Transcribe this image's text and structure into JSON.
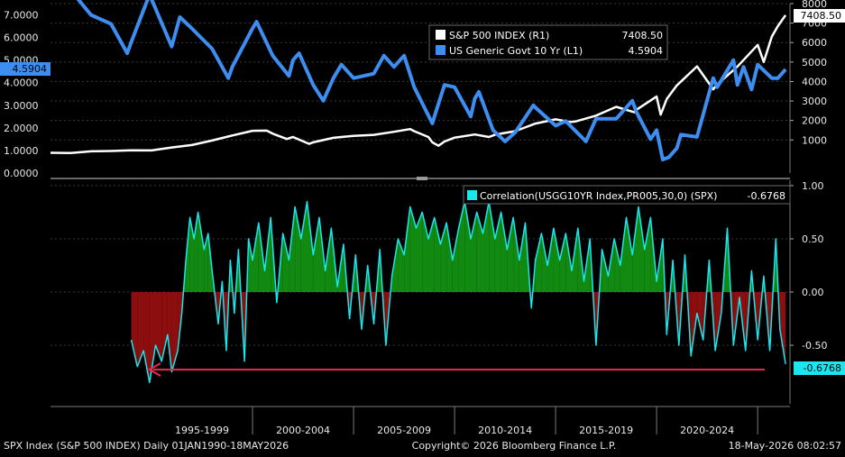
{
  "colors": {
    "background": "#000000",
    "spx_line": "#ffffff",
    "yield_line": "#3d8ef0",
    "corr_line": "#19e6ee",
    "corr_pos_fill": "#128a12",
    "corr_neg_fill": "#8c0e0e",
    "arrow": "#e8284f",
    "grid": "#3a3a3a",
    "axis_text": "#e8e8e8"
  },
  "footer": {
    "left": "SPX Index (S&P 500 INDEX) Daily 01JAN1990-18MAY2026",
    "center": "Copyright© 2026 Bloomberg Finance L.P.",
    "right": "18-May-2026 08:02:57"
  },
  "chart_data": [
    {
      "type": "line",
      "panel": "top",
      "legend": [
        {
          "name": "S&P 500 INDEX  (R1)",
          "last": "7408.50",
          "color": "#ffffff"
        },
        {
          "name": "US Generic Govt 10 Yr  (L1)",
          "last": "4.5904",
          "color": "#3d8ef0"
        }
      ],
      "left_axis": {
        "ticks": [
          "0.0000",
          "1.0000",
          "2.0000",
          "3.0000",
          "4.0000",
          "5.0000",
          "6.0000",
          "7.0000"
        ],
        "ylim": [
          0,
          7.5
        ],
        "last_label": "4.5904"
      },
      "right_axis": {
        "ticks": [
          "1000",
          "2000",
          "3000",
          "4000",
          "5000",
          "6000",
          "7000",
          "8000"
        ],
        "ylim": [
          -700,
          8000
        ],
        "last_label": "7408.50"
      },
      "series": [
        {
          "name": "S&P 500 INDEX",
          "axis": "right",
          "points": [
            [
              1990.0,
              340
            ],
            [
              1991.0,
              330
            ],
            [
              1992.0,
              415
            ],
            [
              1993.0,
              435
            ],
            [
              1994.0,
              465
            ],
            [
              1995.0,
              460
            ],
            [
              1996.0,
              615
            ],
            [
              1997.0,
              740
            ],
            [
              1998.0,
              970
            ],
            [
              1999.0,
              1230
            ],
            [
              2000.0,
              1470
            ],
            [
              2000.7,
              1480
            ],
            [
              2001.0,
              1320
            ],
            [
              2001.7,
              1050
            ],
            [
              2002.0,
              1150
            ],
            [
              2002.8,
              800
            ],
            [
              2003.0,
              880
            ],
            [
              2004.0,
              1110
            ],
            [
              2005.0,
              1210
            ],
            [
              2006.0,
              1260
            ],
            [
              2007.0,
              1420
            ],
            [
              2007.8,
              1560
            ],
            [
              2008.0,
              1450
            ],
            [
              2008.7,
              1150
            ],
            [
              2008.9,
              880
            ],
            [
              2009.2,
              700
            ],
            [
              2009.5,
              920
            ],
            [
              2010.0,
              1120
            ],
            [
              2011.0,
              1280
            ],
            [
              2011.7,
              1150
            ],
            [
              2012.0,
              1270
            ],
            [
              2013.0,
              1450
            ],
            [
              2014.0,
              1840
            ],
            [
              2015.0,
              2060
            ],
            [
              2015.7,
              1920
            ],
            [
              2016.0,
              1950
            ],
            [
              2017.0,
              2250
            ],
            [
              2018.0,
              2700
            ],
            [
              2018.9,
              2420
            ],
            [
              2019.0,
              2550
            ],
            [
              2020.0,
              3230
            ],
            [
              2020.2,
              2300
            ],
            [
              2020.5,
              3100
            ],
            [
              2021.0,
              3800
            ],
            [
              2022.0,
              4780
            ],
            [
              2022.8,
              3600
            ],
            [
              2023.0,
              3850
            ],
            [
              2024.0,
              4770
            ],
            [
              2025.0,
              5880
            ],
            [
              2025.3,
              5000
            ],
            [
              2025.7,
              6300
            ],
            [
              2026.0,
              6850
            ],
            [
              2026.38,
              7408.5
            ]
          ]
        },
        {
          "name": "US Generic Govt 10 Yr",
          "axis": "left",
          "points": [
            [
              1990.0,
              7.9
            ],
            [
              1990.7,
              8.8
            ],
            [
              1991.0,
              8.1
            ],
            [
              1992.0,
              7.0
            ],
            [
              1993.0,
              6.6
            ],
            [
              1993.8,
              5.3
            ],
            [
              1994.0,
              5.8
            ],
            [
              1994.9,
              7.9
            ],
            [
              1995.0,
              7.7
            ],
            [
              1996.0,
              5.6
            ],
            [
              1996.4,
              6.9
            ],
            [
              1997.0,
              6.4
            ],
            [
              1998.0,
              5.5
            ],
            [
              1998.8,
              4.2
            ],
            [
              1999.0,
              4.7
            ],
            [
              2000.0,
              6.4
            ],
            [
              2000.2,
              6.7
            ],
            [
              2001.0,
              5.2
            ],
            [
              2001.8,
              4.3
            ],
            [
              2002.0,
              5.0
            ],
            [
              2002.3,
              5.3
            ],
            [
              2003.0,
              3.9
            ],
            [
              2003.5,
              3.2
            ],
            [
              2004.0,
              4.2
            ],
            [
              2004.4,
              4.8
            ],
            [
              2005.0,
              4.2
            ],
            [
              2006.0,
              4.4
            ],
            [
              2006.5,
              5.2
            ],
            [
              2007.0,
              4.7
            ],
            [
              2007.5,
              5.2
            ],
            [
              2008.0,
              3.8
            ],
            [
              2008.9,
              2.2
            ],
            [
              2009.0,
              2.5
            ],
            [
              2009.5,
              3.9
            ],
            [
              2010.0,
              3.8
            ],
            [
              2010.8,
              2.5
            ],
            [
              2011.0,
              3.3
            ],
            [
              2011.2,
              3.6
            ],
            [
              2011.9,
              1.9
            ],
            [
              2012.5,
              1.4
            ],
            [
              2013.0,
              1.8
            ],
            [
              2013.9,
              3.0
            ],
            [
              2014.0,
              2.9
            ],
            [
              2015.0,
              2.1
            ],
            [
              2015.5,
              2.3
            ],
            [
              2016.5,
              1.4
            ],
            [
              2017.0,
              2.4
            ],
            [
              2018.0,
              2.4
            ],
            [
              2018.8,
              3.2
            ],
            [
              2019.0,
              2.7
            ],
            [
              2019.7,
              1.5
            ],
            [
              2020.0,
              1.9
            ],
            [
              2020.3,
              0.6
            ],
            [
              2020.6,
              0.7
            ],
            [
              2021.0,
              1.1
            ],
            [
              2021.2,
              1.7
            ],
            [
              2022.0,
              1.6
            ],
            [
              2022.8,
              4.2
            ],
            [
              2023.0,
              3.8
            ],
            [
              2023.8,
              5.0
            ],
            [
              2024.0,
              3.9
            ],
            [
              2024.3,
              4.7
            ],
            [
              2024.7,
              3.7
            ],
            [
              2025.0,
              4.8
            ],
            [
              2025.7,
              4.2
            ],
            [
              2026.0,
              4.2
            ],
            [
              2026.38,
              4.59
            ]
          ]
        }
      ]
    },
    {
      "type": "area",
      "panel": "bottom",
      "legend": [
        {
          "name": "Correlation(USGG10YR Index,PR005,30,0) (SPX)",
          "last": "-0.6768",
          "color": "#19e6ee"
        }
      ],
      "right_axis": {
        "ticks": [
          "-0.50",
          "0.00",
          "0.50",
          "1.00"
        ],
        "ylim": [
          -1.05,
          1.05
        ],
        "last_label": "-0.6768"
      },
      "x_period_labels": [
        "1995-1999",
        "2000-2004",
        "2005-2009",
        "2010-2014",
        "2015-2019",
        "2020-2024"
      ],
      "annotation": {
        "type": "arrow",
        "pointing": "left",
        "at_y": -0.7
      },
      "series": [
        {
          "name": "Correlation(USGG10YR Index,PR005,30,0) (SPX)",
          "points": [
            [
              1994.0,
              -0.45
            ],
            [
              1994.3,
              -0.7
            ],
            [
              1994.6,
              -0.55
            ],
            [
              1994.9,
              -0.85
            ],
            [
              1995.2,
              -0.5
            ],
            [
              1995.5,
              -0.65
            ],
            [
              1995.8,
              -0.4
            ],
            [
              1996.0,
              -0.75
            ],
            [
              1996.3,
              -0.55
            ],
            [
              1996.5,
              -0.2
            ],
            [
              1996.7,
              0.3
            ],
            [
              1996.9,
              0.7
            ],
            [
              1997.1,
              0.5
            ],
            [
              1997.3,
              0.75
            ],
            [
              1997.6,
              0.4
            ],
            [
              1997.8,
              0.55
            ],
            [
              1998.0,
              0.2
            ],
            [
              1998.3,
              -0.3
            ],
            [
              1998.5,
              0.1
            ],
            [
              1998.7,
              -0.55
            ],
            [
              1998.9,
              0.3
            ],
            [
              1999.1,
              -0.2
            ],
            [
              1999.3,
              0.4
            ],
            [
              1999.6,
              -0.65
            ],
            [
              1999.8,
              0.5
            ],
            [
              2000.0,
              0.3
            ],
            [
              2000.3,
              0.65
            ],
            [
              2000.6,
              0.2
            ],
            [
              2000.9,
              0.7
            ],
            [
              2001.2,
              -0.1
            ],
            [
              2001.5,
              0.55
            ],
            [
              2001.8,
              0.3
            ],
            [
              2002.1,
              0.8
            ],
            [
              2002.4,
              0.5
            ],
            [
              2002.7,
              0.85
            ],
            [
              2003.0,
              0.35
            ],
            [
              2003.3,
              0.7
            ],
            [
              2003.6,
              0.2
            ],
            [
              2003.9,
              0.6
            ],
            [
              2004.2,
              0.05
            ],
            [
              2004.5,
              0.45
            ],
            [
              2004.8,
              -0.25
            ],
            [
              2005.1,
              0.35
            ],
            [
              2005.4,
              -0.35
            ],
            [
              2005.7,
              0.25
            ],
            [
              2006.0,
              -0.3
            ],
            [
              2006.3,
              0.4
            ],
            [
              2006.6,
              -0.5
            ],
            [
              2006.9,
              0.15
            ],
            [
              2007.2,
              0.5
            ],
            [
              2007.5,
              0.35
            ],
            [
              2007.8,
              0.8
            ],
            [
              2008.1,
              0.6
            ],
            [
              2008.4,
              0.75
            ],
            [
              2008.7,
              0.5
            ],
            [
              2009.0,
              0.7
            ],
            [
              2009.3,
              0.45
            ],
            [
              2009.6,
              0.65
            ],
            [
              2009.9,
              0.3
            ],
            [
              2010.2,
              0.6
            ],
            [
              2010.5,
              0.85
            ],
            [
              2010.8,
              0.5
            ],
            [
              2011.1,
              0.75
            ],
            [
              2011.4,
              0.55
            ],
            [
              2011.7,
              0.85
            ],
            [
              2012.0,
              0.5
            ],
            [
              2012.3,
              0.75
            ],
            [
              2012.6,
              0.4
            ],
            [
              2012.9,
              0.7
            ],
            [
              2013.2,
              0.3
            ],
            [
              2013.5,
              0.65
            ],
            [
              2013.8,
              -0.15
            ],
            [
              2014.0,
              0.3
            ],
            [
              2014.3,
              0.55
            ],
            [
              2014.6,
              0.25
            ],
            [
              2014.9,
              0.6
            ],
            [
              2015.2,
              0.3
            ],
            [
              2015.5,
              0.55
            ],
            [
              2015.8,
              0.2
            ],
            [
              2016.1,
              0.6
            ],
            [
              2016.4,
              0.1
            ],
            [
              2016.7,
              0.5
            ],
            [
              2017.0,
              -0.5
            ],
            [
              2017.3,
              0.4
            ],
            [
              2017.6,
              0.15
            ],
            [
              2017.9,
              0.5
            ],
            [
              2018.2,
              0.25
            ],
            [
              2018.5,
              0.7
            ],
            [
              2018.8,
              0.35
            ],
            [
              2019.1,
              0.8
            ],
            [
              2019.4,
              0.4
            ],
            [
              2019.7,
              0.7
            ],
            [
              2020.0,
              0.1
            ],
            [
              2020.3,
              0.5
            ],
            [
              2020.5,
              -0.4
            ],
            [
              2020.8,
              0.3
            ],
            [
              2021.1,
              -0.5
            ],
            [
              2021.4,
              0.35
            ],
            [
              2021.7,
              -0.6
            ],
            [
              2022.0,
              -0.2
            ],
            [
              2022.3,
              -0.45
            ],
            [
              2022.6,
              0.3
            ],
            [
              2022.9,
              -0.55
            ],
            [
              2023.2,
              -0.2
            ],
            [
              2023.5,
              0.6
            ],
            [
              2023.8,
              -0.5
            ],
            [
              2024.1,
              -0.05
            ],
            [
              2024.4,
              -0.55
            ],
            [
              2024.7,
              0.2
            ],
            [
              2025.0,
              -0.45
            ],
            [
              2025.3,
              0.15
            ],
            [
              2025.6,
              -0.55
            ],
            [
              2025.9,
              0.5
            ],
            [
              2026.1,
              -0.35
            ],
            [
              2026.38,
              -0.6768
            ]
          ]
        }
      ]
    }
  ]
}
